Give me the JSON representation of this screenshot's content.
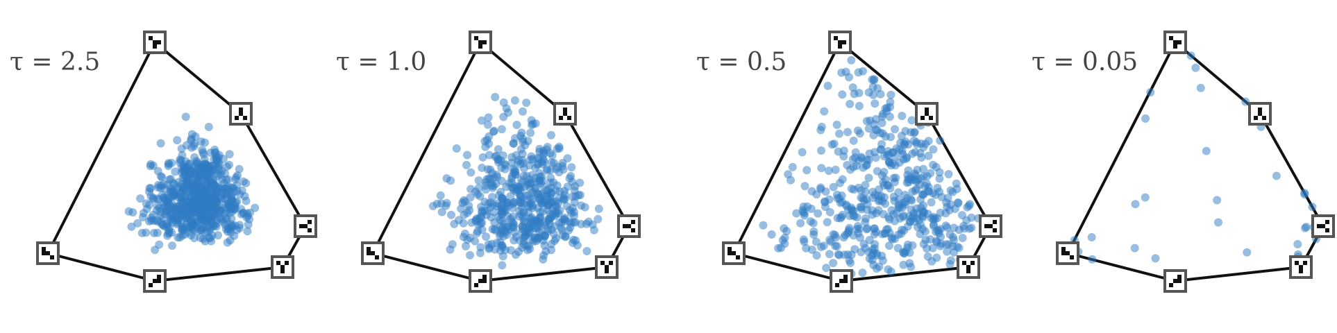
{
  "chart_data": [
    {
      "type": "scatter",
      "panel": "τ = 2.5",
      "label": "τ = 2.5",
      "tau": 2.5,
      "n_vertices": 6,
      "distribution": "tight cluster near centroid",
      "point_count": 700,
      "color": "#2F7BC4"
    },
    {
      "type": "scatter",
      "panel": "τ = 1.0",
      "label": "τ = 1.0",
      "tau": 1.0,
      "n_vertices": 6,
      "distribution": "broad cloud around centroid",
      "point_count": 520,
      "color": "#2F7BC4"
    },
    {
      "type": "scatter",
      "panel": "τ = 0.5",
      "label": "τ = 0.5",
      "tau": 0.5,
      "n_vertices": 6,
      "distribution": "points pushed toward edges and vertices",
      "point_count": 500,
      "color": "#2F7BC4"
    },
    {
      "type": "scatter",
      "panel": "τ = 0.05",
      "label": "τ = 0.05",
      "tau": 0.05,
      "n_vertices": 6,
      "distribution": "points concentrated on polygon edges / vertices",
      "point_count": 70,
      "color": "#2F7BC4"
    }
  ],
  "style": {
    "point_color": "#2F7BC4",
    "edge_color": "#111111",
    "vertex_frame_color": "#555555"
  }
}
